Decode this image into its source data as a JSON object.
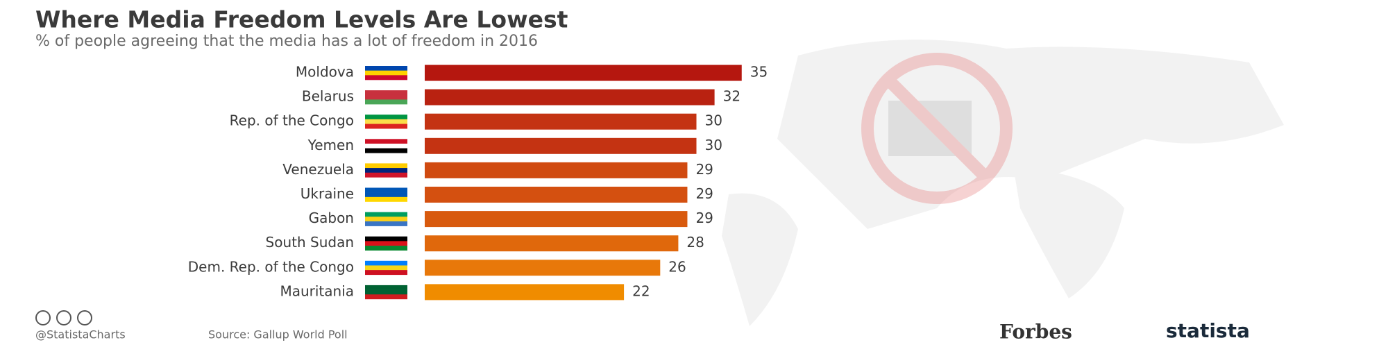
{
  "chart_data": {
    "type": "bar",
    "orientation": "horizontal",
    "title": "Where Media Freedom Levels Are Lowest",
    "subtitle": "% of people agreeing that the media has a lot of freedom in 2016",
    "categories": [
      "Moldova",
      "Belarus",
      "Rep. of the Congo",
      "Yemen",
      "Venezuela",
      "Ukraine",
      "Gabon",
      "South Sudan",
      "Dem. Rep. of the Congo",
      "Mauritania"
    ],
    "values": [
      35,
      32,
      30,
      30,
      29,
      29,
      29,
      28,
      26,
      22
    ],
    "colors": [
      "#b5170f",
      "#b92211",
      "#c43312",
      "#c43312",
      "#d04a10",
      "#d45010",
      "#d85a0e",
      "#e0680c",
      "#e8780a",
      "#f08c00"
    ],
    "credit": "@StatistaCharts",
    "source": "Source: Gallup World Poll",
    "logos": [
      "Forbes",
      "statista"
    ]
  }
}
